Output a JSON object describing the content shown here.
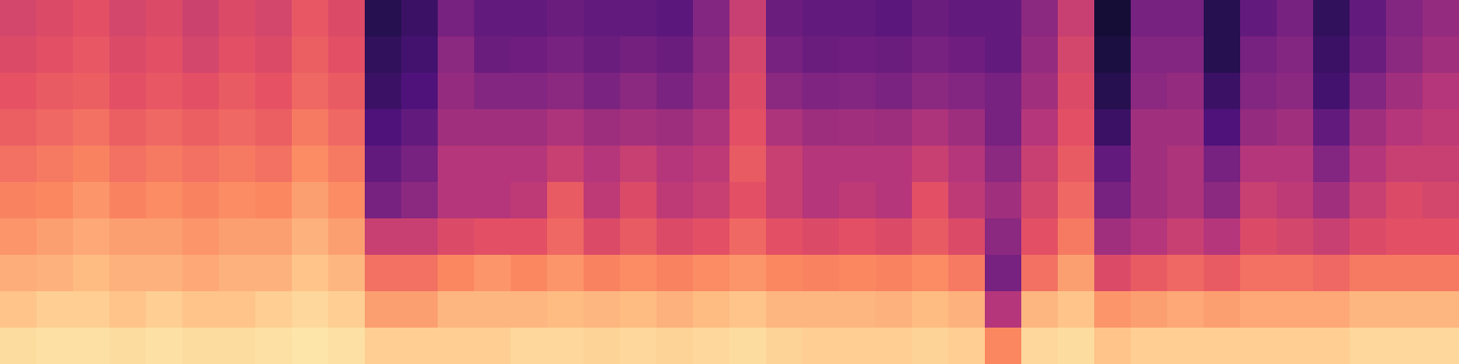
{
  "chart_data": {
    "type": "heatmap",
    "tick_labels": false,
    "zlim": [
      0,
      1
    ],
    "cells": [
      [
        0.58,
        0.6,
        0.63,
        0.66,
        0.7,
        0.74,
        0.78,
        0.83,
        0.88,
        0.93
      ],
      [
        0.6,
        0.62,
        0.65,
        0.68,
        0.72,
        0.75,
        0.8,
        0.84,
        0.9,
        0.94
      ],
      [
        0.62,
        0.64,
        0.66,
        0.7,
        0.74,
        0.78,
        0.82,
        0.86,
        0.9,
        0.94
      ],
      [
        0.58,
        0.6,
        0.62,
        0.66,
        0.7,
        0.74,
        0.8,
        0.84,
        0.88,
        0.93
      ],
      [
        0.6,
        0.62,
        0.64,
        0.68,
        0.72,
        0.76,
        0.8,
        0.84,
        0.9,
        0.94
      ],
      [
        0.56,
        0.58,
        0.62,
        0.66,
        0.7,
        0.74,
        0.78,
        0.82,
        0.88,
        0.93
      ],
      [
        0.6,
        0.62,
        0.65,
        0.68,
        0.72,
        0.76,
        0.8,
        0.84,
        0.88,
        0.93
      ],
      [
        0.58,
        0.6,
        0.63,
        0.66,
        0.7,
        0.75,
        0.8,
        0.84,
        0.9,
        0.94
      ],
      [
        0.64,
        0.66,
        0.68,
        0.72,
        0.76,
        0.8,
        0.84,
        0.88,
        0.92,
        0.95
      ],
      [
        0.6,
        0.62,
        0.65,
        0.68,
        0.72,
        0.76,
        0.8,
        0.85,
        0.9,
        0.94
      ],
      [
        0.15,
        0.18,
        0.2,
        0.25,
        0.3,
        0.35,
        0.55,
        0.7,
        0.8,
        0.9
      ],
      [
        0.2,
        0.22,
        0.25,
        0.3,
        0.35,
        0.4,
        0.55,
        0.7,
        0.8,
        0.9
      ],
      [
        0.35,
        0.4,
        0.42,
        0.45,
        0.5,
        0.5,
        0.6,
        0.75,
        0.85,
        0.9
      ],
      [
        0.3,
        0.32,
        0.38,
        0.45,
        0.5,
        0.5,
        0.62,
        0.78,
        0.85,
        0.9
      ],
      [
        0.3,
        0.33,
        0.38,
        0.45,
        0.5,
        0.52,
        0.62,
        0.75,
        0.85,
        0.92
      ],
      [
        0.32,
        0.35,
        0.4,
        0.48,
        0.55,
        0.65,
        0.68,
        0.78,
        0.86,
        0.92
      ],
      [
        0.3,
        0.32,
        0.36,
        0.44,
        0.5,
        0.52,
        0.6,
        0.74,
        0.85,
        0.91
      ],
      [
        0.3,
        0.34,
        0.4,
        0.46,
        0.55,
        0.6,
        0.65,
        0.76,
        0.86,
        0.92
      ],
      [
        0.28,
        0.32,
        0.36,
        0.44,
        0.5,
        0.52,
        0.6,
        0.74,
        0.84,
        0.91
      ],
      [
        0.38,
        0.4,
        0.42,
        0.48,
        0.52,
        0.55,
        0.62,
        0.76,
        0.86,
        0.92
      ],
      [
        0.55,
        0.58,
        0.6,
        0.62,
        0.65,
        0.62,
        0.68,
        0.78,
        0.88,
        0.93
      ],
      [
        0.32,
        0.35,
        0.4,
        0.48,
        0.55,
        0.55,
        0.62,
        0.75,
        0.85,
        0.91
      ],
      [
        0.3,
        0.32,
        0.37,
        0.44,
        0.5,
        0.5,
        0.6,
        0.74,
        0.85,
        0.9
      ],
      [
        0.3,
        0.33,
        0.38,
        0.45,
        0.5,
        0.52,
        0.62,
        0.75,
        0.85,
        0.9
      ],
      [
        0.28,
        0.32,
        0.36,
        0.44,
        0.5,
        0.5,
        0.6,
        0.74,
        0.84,
        0.9
      ],
      [
        0.32,
        0.35,
        0.4,
        0.48,
        0.55,
        0.62,
        0.65,
        0.76,
        0.86,
        0.91
      ],
      [
        0.3,
        0.33,
        0.38,
        0.44,
        0.5,
        0.52,
        0.6,
        0.72,
        0.84,
        0.9
      ],
      [
        0.3,
        0.3,
        0.35,
        0.35,
        0.4,
        0.45,
        0.4,
        0.35,
        0.5,
        0.75
      ],
      [
        0.4,
        0.42,
        0.45,
        0.5,
        0.55,
        0.58,
        0.62,
        0.7,
        0.85,
        0.92
      ],
      [
        0.55,
        0.58,
        0.6,
        0.62,
        0.65,
        0.68,
        0.72,
        0.8,
        0.88,
        0.93
      ],
      [
        0.1,
        0.12,
        0.15,
        0.2,
        0.3,
        0.35,
        0.45,
        0.6,
        0.78,
        0.88
      ],
      [
        0.35,
        0.38,
        0.4,
        0.45,
        0.45,
        0.45,
        0.5,
        0.65,
        0.8,
        0.9
      ],
      [
        0.35,
        0.38,
        0.42,
        0.45,
        0.48,
        0.48,
        0.55,
        0.68,
        0.82,
        0.9
      ],
      [
        0.15,
        0.15,
        0.2,
        0.25,
        0.35,
        0.4,
        0.5,
        0.65,
        0.8,
        0.9
      ],
      [
        0.3,
        0.35,
        0.38,
        0.42,
        0.5,
        0.55,
        0.6,
        0.7,
        0.82,
        0.9
      ],
      [
        0.35,
        0.38,
        0.4,
        0.45,
        0.5,
        0.52,
        0.58,
        0.7,
        0.82,
        0.9
      ],
      [
        0.18,
        0.2,
        0.22,
        0.3,
        0.38,
        0.45,
        0.55,
        0.68,
        0.82,
        0.9
      ],
      [
        0.3,
        0.32,
        0.38,
        0.45,
        0.5,
        0.55,
        0.6,
        0.72,
        0.85,
        0.92
      ],
      [
        0.38,
        0.4,
        0.45,
        0.5,
        0.55,
        0.6,
        0.62,
        0.72,
        0.85,
        0.92
      ],
      [
        0.42,
        0.45,
        0.5,
        0.52,
        0.55,
        0.58,
        0.62,
        0.72,
        0.85,
        0.92
      ]
    ]
  }
}
